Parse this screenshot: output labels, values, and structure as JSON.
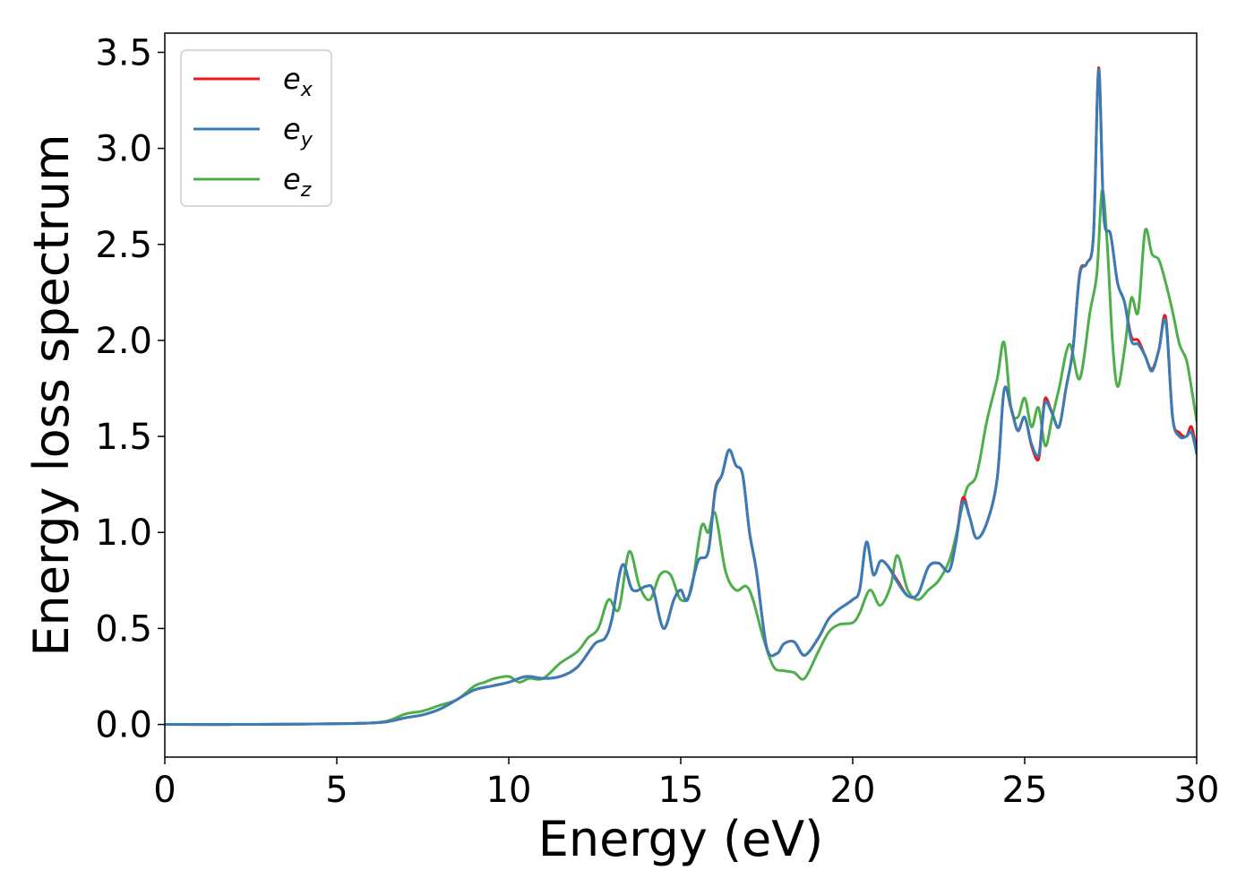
{
  "chart_data": {
    "type": "line",
    "xlabel": "Energy (eV)",
    "ylabel": "Energy loss spectrum",
    "xlim": [
      0,
      30
    ],
    "ylim": [
      -0.17,
      3.6
    ],
    "xticks": [
      0,
      5,
      10,
      15,
      20,
      25,
      30
    ],
    "xtick_labels": [
      "0",
      "5",
      "10",
      "15",
      "20",
      "25",
      "30"
    ],
    "yticks": [
      0.0,
      0.5,
      1.0,
      1.5,
      2.0,
      2.5,
      3.0,
      3.5
    ],
    "ytick_labels": [
      "0.0",
      "0.5",
      "1.0",
      "1.5",
      "2.0",
      "2.5",
      "3.0",
      "3.5"
    ],
    "grid": false,
    "legend_position": "top-left",
    "series": [
      {
        "name": "e",
        "subscript": "x",
        "color": "#e41a1c",
        "x": [
          0,
          2,
          4,
          5,
          6,
          6.5,
          7,
          7.5,
          8,
          8.5,
          9,
          9.5,
          10,
          10.5,
          11,
          11.5,
          12,
          12.5,
          12.8,
          13,
          13.3,
          13.6,
          14,
          14.2,
          14.5,
          14.8,
          15,
          15.2,
          15.5,
          15.8,
          16,
          16.2,
          16.4,
          16.6,
          16.8,
          17,
          17.2,
          17.5,
          17.8,
          18,
          18.3,
          18.6,
          19,
          19.3,
          19.6,
          20,
          20.2,
          20.4,
          20.6,
          20.8,
          21,
          21.3,
          21.6,
          21.9,
          22.2,
          22.5,
          22.8,
          23,
          23.2,
          23.4,
          23.6,
          23.9,
          24.2,
          24.4,
          24.6,
          24.8,
          25,
          25.2,
          25.4,
          25.5,
          25.6,
          25.8,
          26,
          26.2,
          26.4,
          26.6,
          26.8,
          27,
          27.15,
          27.3,
          27.5,
          27.7,
          27.9,
          28.1,
          28.3,
          28.5,
          28.7,
          28.9,
          29.1,
          29.3,
          29.5,
          29.7,
          29.85,
          30
        ],
        "values": [
          0.0,
          0.0,
          0.002,
          0.004,
          0.008,
          0.015,
          0.035,
          0.05,
          0.08,
          0.13,
          0.18,
          0.2,
          0.22,
          0.25,
          0.24,
          0.25,
          0.3,
          0.42,
          0.45,
          0.55,
          0.83,
          0.7,
          0.72,
          0.7,
          0.5,
          0.65,
          0.7,
          0.65,
          0.85,
          0.9,
          1.22,
          1.3,
          1.43,
          1.35,
          1.3,
          1.0,
          0.8,
          0.4,
          0.37,
          0.42,
          0.43,
          0.36,
          0.45,
          0.55,
          0.6,
          0.65,
          0.7,
          0.95,
          0.78,
          0.85,
          0.83,
          0.75,
          0.67,
          0.68,
          0.82,
          0.84,
          0.8,
          0.95,
          1.18,
          1.08,
          0.97,
          1.05,
          1.28,
          1.74,
          1.65,
          1.53,
          1.6,
          1.45,
          1.38,
          1.55,
          1.7,
          1.62,
          1.55,
          1.75,
          1.95,
          2.35,
          2.4,
          2.55,
          3.42,
          2.65,
          2.55,
          2.3,
          2.2,
          2.02,
          2.0,
          1.92,
          1.85,
          1.95,
          2.12,
          1.6,
          1.52,
          1.5,
          1.55,
          1.42
        ]
      },
      {
        "name": "e",
        "subscript": "y",
        "color": "#377eb8",
        "x": [
          0,
          2,
          4,
          5,
          6,
          6.5,
          7,
          7.5,
          8,
          8.5,
          9,
          9.5,
          10,
          10.5,
          11,
          11.5,
          12,
          12.5,
          12.8,
          13,
          13.3,
          13.6,
          14,
          14.2,
          14.5,
          14.8,
          15,
          15.2,
          15.5,
          15.8,
          16,
          16.2,
          16.4,
          16.6,
          16.8,
          17,
          17.2,
          17.5,
          17.8,
          18,
          18.3,
          18.6,
          19,
          19.3,
          19.6,
          20,
          20.2,
          20.4,
          20.6,
          20.8,
          21,
          21.3,
          21.6,
          21.9,
          22.2,
          22.5,
          22.8,
          23,
          23.2,
          23.4,
          23.6,
          23.9,
          24.2,
          24.4,
          24.6,
          24.8,
          25,
          25.2,
          25.4,
          25.5,
          25.6,
          25.8,
          26,
          26.2,
          26.4,
          26.6,
          26.8,
          27,
          27.15,
          27.3,
          27.5,
          27.7,
          27.9,
          28.1,
          28.3,
          28.5,
          28.7,
          28.9,
          29.1,
          29.3,
          29.5,
          29.7,
          29.85,
          30
        ],
        "values": [
          0.0,
          0.0,
          0.002,
          0.004,
          0.008,
          0.015,
          0.035,
          0.05,
          0.08,
          0.13,
          0.18,
          0.2,
          0.22,
          0.25,
          0.24,
          0.25,
          0.3,
          0.42,
          0.45,
          0.55,
          0.83,
          0.7,
          0.72,
          0.7,
          0.5,
          0.65,
          0.7,
          0.65,
          0.85,
          0.9,
          1.21,
          1.3,
          1.43,
          1.35,
          1.3,
          1.0,
          0.8,
          0.4,
          0.37,
          0.42,
          0.43,
          0.36,
          0.45,
          0.55,
          0.6,
          0.65,
          0.7,
          0.95,
          0.78,
          0.85,
          0.83,
          0.74,
          0.67,
          0.68,
          0.82,
          0.84,
          0.8,
          0.95,
          1.16,
          1.08,
          0.97,
          1.05,
          1.28,
          1.74,
          1.65,
          1.53,
          1.6,
          1.46,
          1.4,
          1.55,
          1.68,
          1.62,
          1.55,
          1.75,
          1.95,
          2.34,
          2.4,
          2.55,
          3.41,
          2.65,
          2.55,
          2.3,
          2.2,
          2.0,
          1.98,
          1.92,
          1.84,
          1.95,
          2.1,
          1.6,
          1.5,
          1.5,
          1.52,
          1.41
        ]
      },
      {
        "name": "e",
        "subscript": "z",
        "color": "#4daf4a",
        "x": [
          0,
          2,
          4,
          5,
          6,
          6.5,
          7,
          7.5,
          8,
          8.5,
          9,
          9.3,
          9.6,
          10,
          10.3,
          10.6,
          11,
          11.5,
          12,
          12.3,
          12.6,
          12.9,
          13.2,
          13.5,
          13.8,
          14.1,
          14.4,
          14.7,
          15,
          15.3,
          15.6,
          15.8,
          16,
          16.3,
          16.6,
          16.9,
          17.1,
          17.4,
          17.7,
          18,
          18.3,
          18.6,
          19,
          19.3,
          19.6,
          20,
          20.2,
          20.5,
          20.8,
          21.1,
          21.3,
          21.6,
          21.9,
          22.2,
          22.5,
          22.8,
          23,
          23.3,
          23.6,
          23.9,
          24.2,
          24.4,
          24.6,
          24.8,
          25,
          25.2,
          25.4,
          25.6,
          25.8,
          26,
          26.3,
          26.6,
          26.9,
          27.1,
          27.25,
          27.4,
          27.55,
          27.7,
          27.9,
          28.1,
          28.3,
          28.5,
          28.7,
          28.9,
          29.1,
          29.3,
          29.5,
          29.7,
          29.85,
          30
        ],
        "values": [
          0.0,
          0.0,
          0.002,
          0.004,
          0.008,
          0.02,
          0.055,
          0.07,
          0.1,
          0.13,
          0.2,
          0.22,
          0.24,
          0.25,
          0.22,
          0.24,
          0.24,
          0.32,
          0.38,
          0.45,
          0.5,
          0.65,
          0.6,
          0.9,
          0.72,
          0.65,
          0.78,
          0.78,
          0.65,
          0.7,
          1.03,
          1.0,
          1.1,
          0.8,
          0.7,
          0.72,
          0.65,
          0.45,
          0.3,
          0.28,
          0.27,
          0.24,
          0.38,
          0.48,
          0.52,
          0.53,
          0.58,
          0.7,
          0.62,
          0.72,
          0.88,
          0.7,
          0.65,
          0.7,
          0.75,
          0.85,
          0.98,
          1.22,
          1.3,
          1.58,
          1.8,
          1.99,
          1.65,
          1.6,
          1.7,
          1.55,
          1.65,
          1.45,
          1.6,
          1.75,
          1.98,
          1.8,
          2.15,
          2.35,
          2.78,
          2.5,
          2.0,
          1.76,
          1.95,
          2.22,
          2.15,
          2.57,
          2.45,
          2.42,
          2.3,
          2.15,
          1.98,
          1.9,
          1.75,
          1.58
        ]
      }
    ]
  }
}
